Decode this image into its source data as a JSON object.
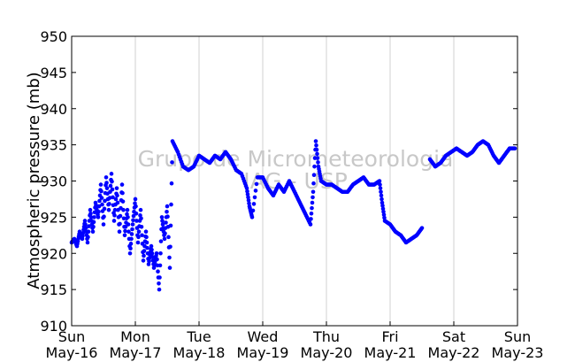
{
  "chart_data": {
    "type": "scatter",
    "title": "",
    "xlabel": "",
    "ylabel": "Atmospheric pressure (mb)",
    "ylim": [
      910,
      950
    ],
    "yticks": [
      910,
      915,
      920,
      925,
      930,
      935,
      940,
      945,
      950
    ],
    "xlim": [
      "2010-05-16",
      "2010-05-23"
    ],
    "grid": "vertical only",
    "legend": "none",
    "watermark": [
      "Grupo de Micrometeorologia",
      "IAG - USP"
    ],
    "x_ticks": [
      {
        "top": "Sun",
        "bottom": "May-16"
      },
      {
        "top": "Mon",
        "bottom": "May-17"
      },
      {
        "top": "Tue",
        "bottom": "May-18"
      },
      {
        "top": "Wed",
        "bottom": "May-19"
      },
      {
        "top": "Thu",
        "bottom": "May-20"
      },
      {
        "top": "Fri",
        "bottom": "May-21"
      },
      {
        "top": "Sat",
        "bottom": "May-22"
      },
      {
        "top": "Sun",
        "bottom": "May-23"
      }
    ],
    "series": [
      {
        "color": "#0000ff",
        "points": [
          [
            "2010-05-16 00:00",
            921.5
          ],
          [
            "2010-05-16 01:00",
            922.0
          ],
          [
            "2010-05-16 02:00",
            921.0
          ],
          [
            "2010-05-16 03:00",
            923.0
          ],
          [
            "2010-05-16 04:00",
            922.0
          ],
          [
            "2010-05-16 05:00",
            924.5
          ],
          [
            "2010-05-16 06:00",
            921.5
          ],
          [
            "2010-05-16 07:00",
            926.0
          ],
          [
            "2010-05-16 08:00",
            923.0
          ],
          [
            "2010-05-16 09:00",
            927.0
          ],
          [
            "2010-05-16 10:00",
            925.0
          ],
          [
            "2010-05-16 11:00",
            929.5
          ],
          [
            "2010-05-16 12:00",
            924.0
          ],
          [
            "2010-05-16 13:00",
            930.5
          ],
          [
            "2010-05-16 14:00",
            926.0
          ],
          [
            "2010-05-16 15:00",
            931.0
          ],
          [
            "2010-05-16 16:00",
            924.5
          ],
          [
            "2010-05-16 17:00",
            929.0
          ],
          [
            "2010-05-16 18:00",
            923.0
          ],
          [
            "2010-05-16 19:00",
            929.5
          ],
          [
            "2010-05-16 20:00",
            922.5
          ],
          [
            "2010-05-16 21:00",
            926.0
          ],
          [
            "2010-05-16 22:00",
            920.0
          ],
          [
            "2010-05-16 23:00",
            924.0
          ],
          [
            "2010-05-17 00:00",
            927.5
          ],
          [
            "2010-05-17 01:00",
            921.5
          ],
          [
            "2010-05-17 02:00",
            926.0
          ],
          [
            "2010-05-17 03:00",
            919.0
          ],
          [
            "2010-05-17 04:00",
            923.0
          ],
          [
            "2010-05-17 05:00",
            918.5
          ],
          [
            "2010-05-17 06:00",
            921.0
          ],
          [
            "2010-05-17 07:00",
            918.0
          ],
          [
            "2010-05-17 08:00",
            920.0
          ],
          [
            "2010-05-17 09:00",
            915.0
          ],
          [
            "2010-05-17 10:00",
            925.0
          ],
          [
            "2010-05-17 11:00",
            922.0
          ],
          [
            "2010-05-17 12:00",
            926.5
          ],
          [
            "2010-05-17 13:00",
            918.0
          ],
          [
            "2010-05-17 14:00",
            935.5
          ],
          [
            "2010-05-17 16:00",
            934.0
          ],
          [
            "2010-05-17 18:00",
            932.0
          ],
          [
            "2010-05-17 20:00",
            931.5
          ],
          [
            "2010-05-17 22:00",
            932.0
          ],
          [
            "2010-05-18 00:00",
            933.5
          ],
          [
            "2010-05-18 02:00",
            933.0
          ],
          [
            "2010-05-18 04:00",
            932.5
          ],
          [
            "2010-05-18 06:00",
            933.5
          ],
          [
            "2010-05-18 08:00",
            933.0
          ],
          [
            "2010-05-18 10:00",
            934.0
          ],
          [
            "2010-05-18 12:00",
            933.0
          ],
          [
            "2010-05-18 14:00",
            931.5
          ],
          [
            "2010-05-18 16:00",
            931.0
          ],
          [
            "2010-05-18 18:00",
            929.0
          ],
          [
            "2010-05-18 19:00",
            926.5
          ],
          [
            "2010-05-18 20:00",
            925.0
          ],
          [
            "2010-05-18 22:00",
            930.5
          ],
          [
            "2010-05-19 00:00",
            930.5
          ],
          [
            "2010-05-19 02:00",
            929.0
          ],
          [
            "2010-05-19 04:00",
            928.0
          ],
          [
            "2010-05-19 06:00",
            929.5
          ],
          [
            "2010-05-19 08:00",
            928.5
          ],
          [
            "2010-05-19 10:00",
            930.0
          ],
          [
            "2010-05-19 12:00",
            928.5
          ],
          [
            "2010-05-19 14:00",
            927.0
          ],
          [
            "2010-05-19 16:00",
            925.5
          ],
          [
            "2010-05-19 18:00",
            924.0
          ],
          [
            "2010-05-19 19:00",
            928.5
          ],
          [
            "2010-05-19 20:00",
            935.5
          ],
          [
            "2010-05-19 21:00",
            932.0
          ],
          [
            "2010-05-19 22:00",
            930.0
          ],
          [
            "2010-05-20 00:00",
            929.5
          ],
          [
            "2010-05-20 02:00",
            929.5
          ],
          [
            "2010-05-20 04:00",
            929.0
          ],
          [
            "2010-05-20 06:00",
            928.5
          ],
          [
            "2010-05-20 08:00",
            928.5
          ],
          [
            "2010-05-20 10:00",
            929.5
          ],
          [
            "2010-05-20 12:00",
            930.0
          ],
          [
            "2010-05-20 14:00",
            930.5
          ],
          [
            "2010-05-20 16:00",
            929.5
          ],
          [
            "2010-05-20 18:00",
            929.5
          ],
          [
            "2010-05-20 20:00",
            930.0
          ],
          [
            "2010-05-20 21:00",
            927.0
          ],
          [
            "2010-05-20 22:00",
            924.5
          ],
          [
            "2010-05-21 00:00",
            924.0
          ],
          [
            "2010-05-21 02:00",
            923.0
          ],
          [
            "2010-05-21 04:00",
            922.5
          ],
          [
            "2010-05-21 06:00",
            921.5
          ],
          [
            "2010-05-21 08:00",
            922.0
          ],
          [
            "2010-05-21 10:00",
            922.5
          ],
          [
            "2010-05-21 12:00",
            923.5
          ],
          [
            "2010-05-21 15:00",
            933.0
          ],
          [
            "2010-05-21 17:00",
            932.0
          ],
          [
            "2010-05-21 19:00",
            932.5
          ],
          [
            "2010-05-21 21:00",
            933.5
          ],
          [
            "2010-05-21 23:00",
            934.0
          ],
          [
            "2010-05-22 01:00",
            934.5
          ],
          [
            "2010-05-22 03:00",
            934.0
          ],
          [
            "2010-05-22 05:00",
            933.5
          ],
          [
            "2010-05-22 07:00",
            934.0
          ],
          [
            "2010-05-22 09:00",
            935.0
          ],
          [
            "2010-05-22 11:00",
            935.5
          ],
          [
            "2010-05-22 13:00",
            935.0
          ],
          [
            "2010-05-22 15:00",
            933.5
          ],
          [
            "2010-05-22 17:00",
            932.5
          ],
          [
            "2010-05-22 19:00",
            933.5
          ],
          [
            "2010-05-22 21:00",
            934.5
          ],
          [
            "2010-05-22 23:00",
            934.5
          ]
        ]
      }
    ]
  }
}
